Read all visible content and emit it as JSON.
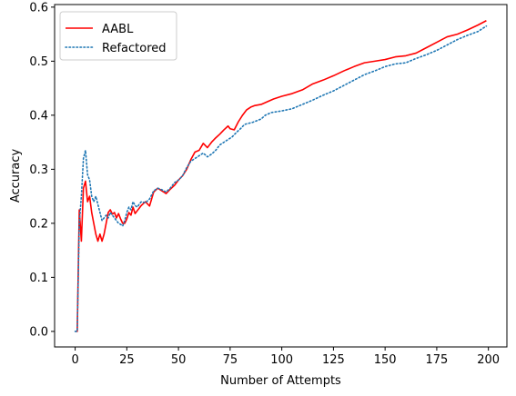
{
  "chart_data": {
    "type": "line",
    "title": "",
    "xlabel": "Number of Attempts",
    "ylabel": "Accuracy",
    "xlim": [
      -9.95,
      208.95
    ],
    "ylim": [
      -0.0288,
      0.6048
    ],
    "xticks": [
      0,
      25,
      50,
      75,
      100,
      125,
      150,
      175,
      200
    ],
    "yticks": [
      0.0,
      0.1,
      0.2,
      0.3,
      0.4,
      0.5,
      0.6
    ],
    "ytick_labels": [
      "0.0",
      "0.1",
      "0.2",
      "0.3",
      "0.4",
      "0.5",
      "0.6"
    ],
    "grid": false,
    "legend": "top-left",
    "series": [
      {
        "name": "AABL",
        "color": "#ff0000",
        "style": "solid",
        "points": [
          [
            0,
            0.0
          ],
          [
            1,
            0.0
          ],
          [
            2,
            0.225
          ],
          [
            3,
            0.167
          ],
          [
            4,
            0.265
          ],
          [
            5,
            0.278
          ],
          [
            6,
            0.24
          ],
          [
            7,
            0.25
          ],
          [
            8,
            0.22
          ],
          [
            9,
            0.2
          ],
          [
            10,
            0.18
          ],
          [
            11,
            0.167
          ],
          [
            12,
            0.18
          ],
          [
            13,
            0.167
          ],
          [
            14,
            0.18
          ],
          [
            15,
            0.2
          ],
          [
            16,
            0.22
          ],
          [
            17,
            0.225
          ],
          [
            18,
            0.217
          ],
          [
            19,
            0.22
          ],
          [
            20,
            0.21
          ],
          [
            21,
            0.218
          ],
          [
            22,
            0.208
          ],
          [
            23,
            0.2
          ],
          [
            24,
            0.2
          ],
          [
            25,
            0.208
          ],
          [
            26,
            0.22
          ],
          [
            27,
            0.215
          ],
          [
            28,
            0.23
          ],
          [
            29,
            0.218
          ],
          [
            30,
            0.223
          ],
          [
            32,
            0.233
          ],
          [
            34,
            0.24
          ],
          [
            36,
            0.232
          ],
          [
            38,
            0.258
          ],
          [
            40,
            0.265
          ],
          [
            42,
            0.26
          ],
          [
            44,
            0.255
          ],
          [
            46,
            0.263
          ],
          [
            48,
            0.27
          ],
          [
            50,
            0.28
          ],
          [
            52,
            0.288
          ],
          [
            54,
            0.3
          ],
          [
            56,
            0.318
          ],
          [
            58,
            0.332
          ],
          [
            60,
            0.335
          ],
          [
            62,
            0.348
          ],
          [
            64,
            0.34
          ],
          [
            66,
            0.35
          ],
          [
            68,
            0.358
          ],
          [
            70,
            0.365
          ],
          [
            72,
            0.373
          ],
          [
            74,
            0.38
          ],
          [
            75,
            0.375
          ],
          [
            77,
            0.373
          ],
          [
            79,
            0.388
          ],
          [
            81,
            0.4
          ],
          [
            83,
            0.41
          ],
          [
            85,
            0.415
          ],
          [
            87,
            0.418
          ],
          [
            90,
            0.42
          ],
          [
            93,
            0.425
          ],
          [
            96,
            0.43
          ],
          [
            100,
            0.435
          ],
          [
            105,
            0.44
          ],
          [
            110,
            0.447
          ],
          [
            115,
            0.458
          ],
          [
            120,
            0.465
          ],
          [
            125,
            0.473
          ],
          [
            130,
            0.482
          ],
          [
            135,
            0.49
          ],
          [
            140,
            0.497
          ],
          [
            145,
            0.5
          ],
          [
            150,
            0.503
          ],
          [
            155,
            0.508
          ],
          [
            160,
            0.51
          ],
          [
            165,
            0.515
          ],
          [
            170,
            0.525
          ],
          [
            175,
            0.535
          ],
          [
            180,
            0.545
          ],
          [
            185,
            0.55
          ],
          [
            190,
            0.558
          ],
          [
            195,
            0.567
          ],
          [
            199,
            0.575
          ]
        ]
      },
      {
        "name": "Refactored",
        "color": "#1f77b4",
        "style": "dotted",
        "points": [
          [
            0,
            0.0
          ],
          [
            1,
            0.0
          ],
          [
            2,
            0.2
          ],
          [
            3,
            0.25
          ],
          [
            4,
            0.32
          ],
          [
            5,
            0.335
          ],
          [
            6,
            0.29
          ],
          [
            7,
            0.28
          ],
          [
            8,
            0.25
          ],
          [
            9,
            0.24
          ],
          [
            10,
            0.25
          ],
          [
            11,
            0.235
          ],
          [
            12,
            0.22
          ],
          [
            13,
            0.205
          ],
          [
            14,
            0.21
          ],
          [
            15,
            0.215
          ],
          [
            16,
            0.21
          ],
          [
            17,
            0.22
          ],
          [
            18,
            0.215
          ],
          [
            19,
            0.21
          ],
          [
            20,
            0.205
          ],
          [
            21,
            0.2
          ],
          [
            22,
            0.198
          ],
          [
            23,
            0.195
          ],
          [
            24,
            0.205
          ],
          [
            25,
            0.22
          ],
          [
            26,
            0.23
          ],
          [
            27,
            0.225
          ],
          [
            28,
            0.24
          ],
          [
            29,
            0.233
          ],
          [
            30,
            0.23
          ],
          [
            32,
            0.24
          ],
          [
            34,
            0.238
          ],
          [
            36,
            0.245
          ],
          [
            38,
            0.26
          ],
          [
            40,
            0.265
          ],
          [
            42,
            0.262
          ],
          [
            44,
            0.258
          ],
          [
            46,
            0.265
          ],
          [
            48,
            0.275
          ],
          [
            50,
            0.28
          ],
          [
            52,
            0.288
          ],
          [
            54,
            0.303
          ],
          [
            56,
            0.315
          ],
          [
            58,
            0.32
          ],
          [
            60,
            0.325
          ],
          [
            62,
            0.33
          ],
          [
            64,
            0.323
          ],
          [
            66,
            0.328
          ],
          [
            68,
            0.335
          ],
          [
            70,
            0.345
          ],
          [
            72,
            0.35
          ],
          [
            74,
            0.355
          ],
          [
            76,
            0.36
          ],
          [
            78,
            0.368
          ],
          [
            80,
            0.375
          ],
          [
            82,
            0.383
          ],
          [
            84,
            0.385
          ],
          [
            86,
            0.387
          ],
          [
            88,
            0.39
          ],
          [
            90,
            0.393
          ],
          [
            92,
            0.4
          ],
          [
            95,
            0.405
          ],
          [
            100,
            0.408
          ],
          [
            105,
            0.412
          ],
          [
            110,
            0.42
          ],
          [
            115,
            0.428
          ],
          [
            120,
            0.437
          ],
          [
            125,
            0.445
          ],
          [
            130,
            0.455
          ],
          [
            135,
            0.465
          ],
          [
            140,
            0.475
          ],
          [
            145,
            0.482
          ],
          [
            150,
            0.49
          ],
          [
            155,
            0.495
          ],
          [
            160,
            0.497
          ],
          [
            165,
            0.505
          ],
          [
            170,
            0.512
          ],
          [
            175,
            0.52
          ],
          [
            180,
            0.53
          ],
          [
            185,
            0.54
          ],
          [
            190,
            0.548
          ],
          [
            195,
            0.555
          ],
          [
            199,
            0.565
          ]
        ]
      }
    ]
  }
}
